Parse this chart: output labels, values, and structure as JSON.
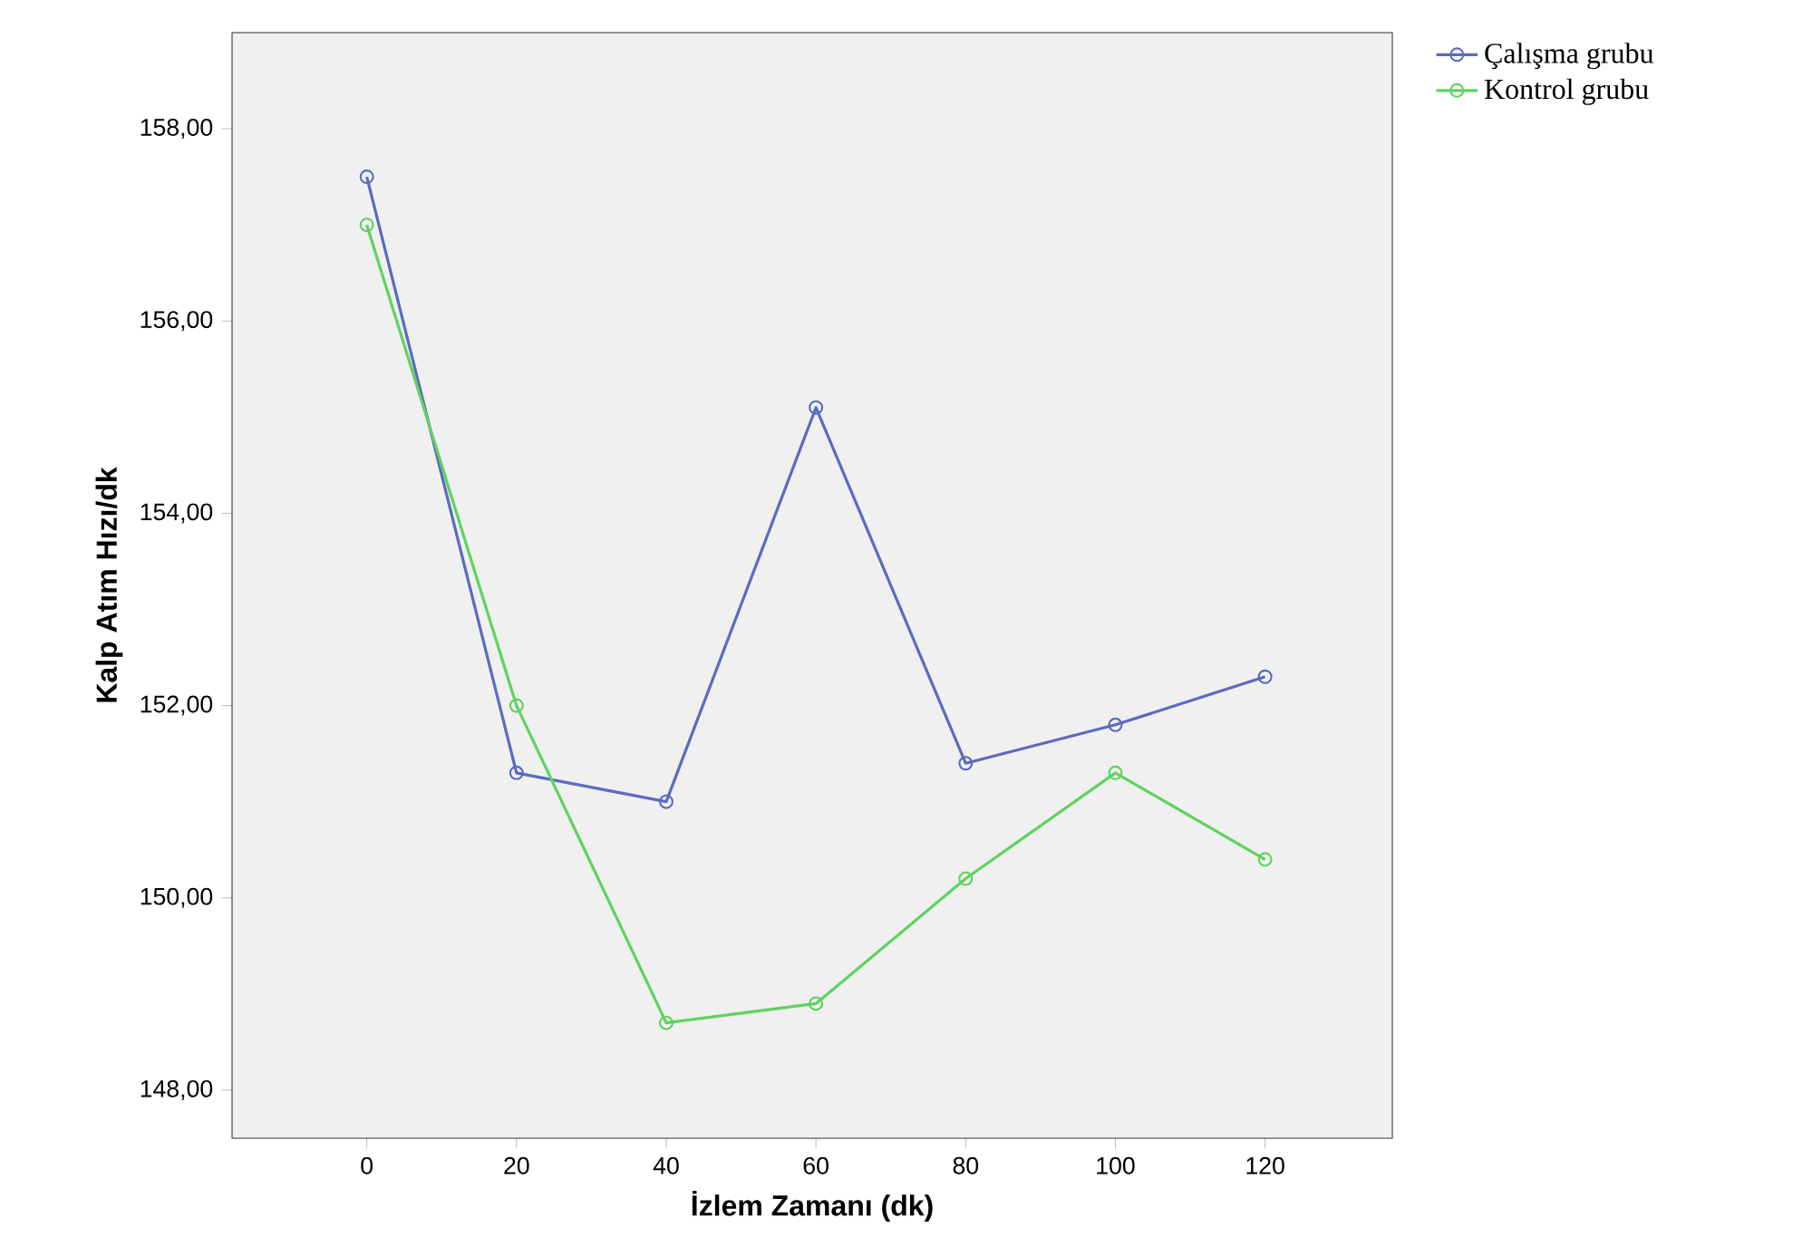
{
  "chart_data": {
    "type": "line",
    "xlabel": "İzlem Zamanı (dk)",
    "ylabel": "Kalp Atım Hızı/dk",
    "x": [
      0,
      20,
      40,
      60,
      80,
      100,
      120
    ],
    "series": [
      {
        "name": "Çalışma grubu",
        "color": "#5b6bbf",
        "values": [
          157.5,
          151.3,
          151.0,
          155.1,
          151.4,
          151.8,
          152.3
        ]
      },
      {
        "name": "Kontrol grubu",
        "color": "#5fd35f",
        "values": [
          157.0,
          152.0,
          148.7,
          148.9,
          150.2,
          151.3,
          150.4
        ]
      }
    ],
    "xlim": [
      -18,
      137
    ],
    "ylim": [
      147.5,
      159
    ],
    "xticks": [
      0,
      20,
      40,
      60,
      80,
      100,
      120
    ],
    "yticks": [
      {
        "value": 148,
        "label": "148,00"
      },
      {
        "value": 150,
        "label": "150,00"
      },
      {
        "value": 152,
        "label": "152,00"
      },
      {
        "value": 154,
        "label": "154,00"
      },
      {
        "value": 156,
        "label": "156,00"
      },
      {
        "value": 158,
        "label": "158,00"
      }
    ],
    "legend": "top right",
    "marker": "circle",
    "line_style": "solid",
    "grid": false
  }
}
